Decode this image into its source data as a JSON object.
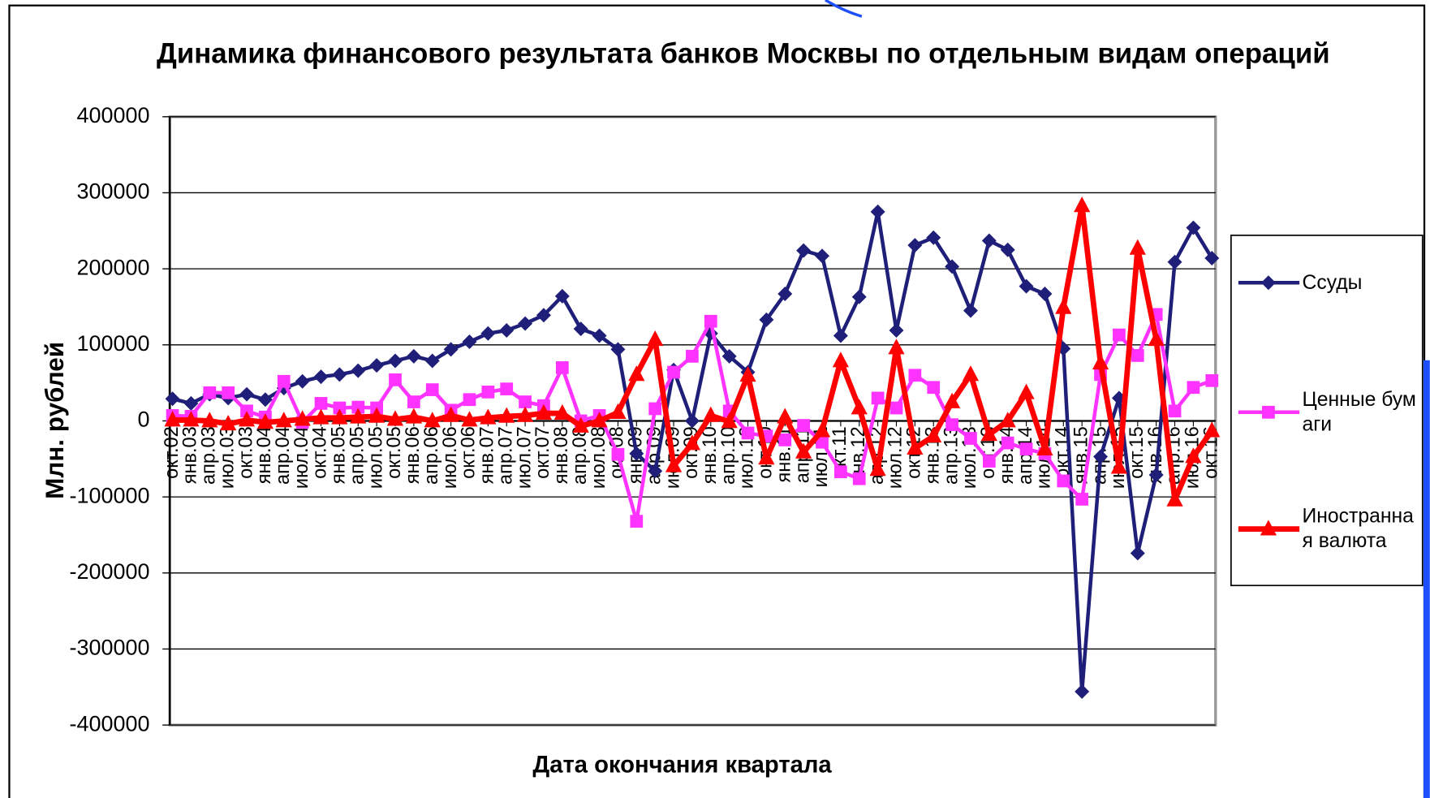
{
  "chart_data": {
    "type": "line",
    "title": "Динамика финансового результата банков Москвы по отдельным видам операций",
    "x_label": "Дата окончания квартала",
    "y_label": "Млн. рублей",
    "categories": [
      "окт.02",
      "янв.03",
      "апр.03",
      "июл.03",
      "окт.03",
      "янв.04",
      "апр.04",
      "июл.04",
      "окт.04",
      "янв.05",
      "апр.05",
      "июл.05",
      "окт.05",
      "янв.06",
      "апр.06",
      "июл.06",
      "окт.06",
      "янв.07",
      "апр.07",
      "июл.07",
      "окт.07",
      "янв.08",
      "апр.08",
      "июл.08",
      "окт.08",
      "янв.09",
      "апр.09",
      "июл.09",
      "окт.09",
      "янв.10",
      "апр.10",
      "июл.10",
      "окт.10",
      "янв.11",
      "апр.11",
      "июл.11",
      "окт.11",
      "янв.12",
      "апр.12",
      "июл.12",
      "окт.12",
      "янв.13",
      "апр.13",
      "июл.13",
      "окт.13",
      "янв.14",
      "апр.14",
      "июл.14",
      "окт.14",
      "янв.15",
      "апр.15",
      "июл.15",
      "окт.15",
      "янв.16",
      "апр.16",
      "июл.16",
      "окт.16"
    ],
    "series": [
      {
        "name": "Ссуды",
        "color": "#1f1f7a",
        "marker": "diamond",
        "values": [
          29000,
          23000,
          35000,
          30000,
          35000,
          28000,
          43000,
          52000,
          58000,
          61000,
          66000,
          73000,
          79000,
          85000,
          79000,
          94000,
          104000,
          115000,
          119000,
          128000,
          139000,
          164000,
          121000,
          112000,
          94000,
          -43000,
          -66000,
          67000,
          0,
          115000,
          85000,
          64000,
          133000,
          167000,
          224000,
          217000,
          112000,
          163000,
          275000,
          119000,
          231000,
          241000,
          203000,
          145000,
          237000,
          225000,
          177000,
          167000,
          95000,
          -356000,
          -47000,
          30000,
          -174000,
          -71000,
          209000,
          254000,
          214000
        ]
      },
      {
        "name": "Ценные бумаги",
        "color": "#ff33ff",
        "marker": "square",
        "values": [
          7000,
          6000,
          37000,
          37000,
          13000,
          5000,
          52000,
          -2000,
          23000,
          17000,
          18000,
          17000,
          54000,
          25000,
          41000,
          14000,
          28000,
          38000,
          42000,
          25000,
          20000,
          70000,
          0,
          7000,
          -44000,
          -132000,
          16000,
          64000,
          85000,
          131000,
          13000,
          -16000,
          -20000,
          -25000,
          -6000,
          -28000,
          -67000,
          -76000,
          30000,
          17000,
          60000,
          44000,
          -5000,
          -23000,
          -53000,
          -29000,
          -37000,
          -43000,
          -79000,
          -103000,
          61000,
          113000,
          86000,
          140000,
          13000,
          44000,
          53000
        ]
      },
      {
        "name": "Иностранная валюта",
        "color": "#ff0000",
        "marker": "triangle",
        "values": [
          1000,
          1000,
          0,
          -4000,
          1000,
          -2000,
          0,
          2000,
          4000,
          4000,
          5000,
          6000,
          2000,
          5000,
          0,
          7000,
          1000,
          4000,
          6000,
          7000,
          10000,
          10000,
          -7000,
          0,
          11000,
          61000,
          107000,
          -59000,
          -30000,
          7000,
          -1000,
          60000,
          -49000,
          5000,
          -41000,
          -13000,
          79000,
          17000,
          -64000,
          96000,
          -36000,
          -20000,
          25000,
          61000,
          -18000,
          0,
          37000,
          -37000,
          149000,
          283000,
          76000,
          -61000,
          227000,
          107000,
          -104000,
          -47000,
          -13000
        ]
      }
    ],
    "ylim": [
      -400000,
      400000
    ],
    "yticks": [
      -400000,
      -300000,
      -200000,
      -100000,
      0,
      100000,
      200000,
      300000,
      400000
    ],
    "grid": true
  }
}
